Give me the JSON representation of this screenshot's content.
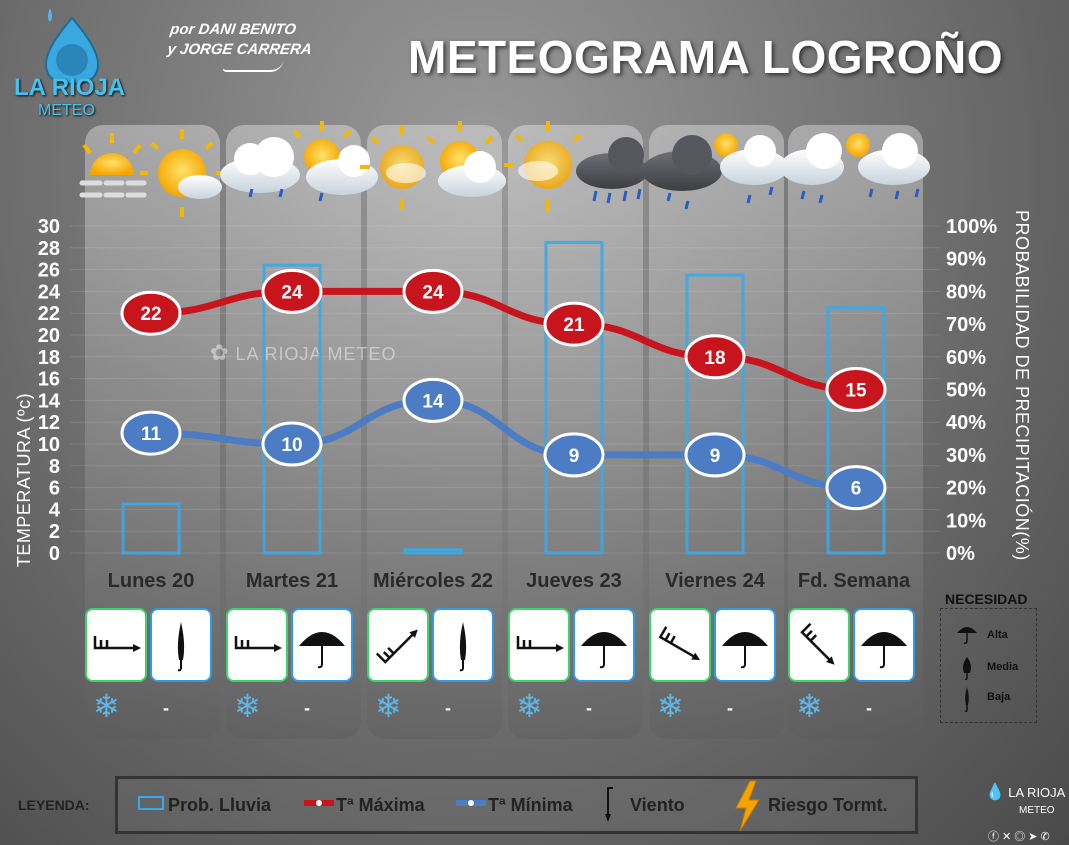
{
  "header": {
    "logo_line1": "LA RIOJA",
    "logo_line2": "METEO",
    "byline1": "por DANI BENITO",
    "byline2": "y JORGE CARRERA",
    "title": "METEOGRAMA LOGROÑO"
  },
  "watermark": "LA RIOJA METEO",
  "colors": {
    "max": "#c8141c",
    "min": "#4b7cc4",
    "rain": "#3aa8e8",
    "wind_border": "#3fd36b",
    "umbrella_border": "#2f9be8"
  },
  "chart_data": {
    "type": "line",
    "categories": [
      "Lunes 20",
      "Martes 21",
      "Miércoles 22",
      "Jueves 23",
      "Viernes 24",
      "Fd. Semana"
    ],
    "series": [
      {
        "name": "Tª Máxima",
        "values": [
          22,
          24,
          24,
          21,
          18,
          15
        ],
        "axis": "left"
      },
      {
        "name": "Tª Mínima",
        "values": [
          11,
          10,
          14,
          9,
          9,
          6
        ],
        "axis": "left"
      },
      {
        "name": "Prob. Lluvia",
        "values": [
          15,
          88,
          1,
          95,
          85,
          75
        ],
        "axis": "right",
        "render": "bar"
      }
    ],
    "ylabel": "TEMPERATURA (ºc)",
    "ylim": [
      0,
      30
    ],
    "yticks": [
      "0",
      "2",
      "4",
      "6",
      "8",
      "10",
      "12",
      "14",
      "16",
      "18",
      "20",
      "22",
      "24",
      "26",
      "28",
      "30"
    ],
    "y2label": "PROBABILIDAD DE PRECIPITACIÓN(%)",
    "y2lim": [
      0,
      100
    ],
    "y2ticks": [
      "0%",
      "10%",
      "20%",
      "30%",
      "40%",
      "50%",
      "60%",
      "70%",
      "80%",
      "90%",
      "100%"
    ]
  },
  "days": [
    {
      "name": "Lunes 20",
      "wind_dir": 90,
      "umbrella": "baja",
      "storm": "-"
    },
    {
      "name": "Martes 21",
      "wind_dir": 90,
      "umbrella": "alta",
      "storm": "-"
    },
    {
      "name": "Miércoles 22",
      "wind_dir": 45,
      "umbrella": "baja",
      "storm": "-"
    },
    {
      "name": "Jueves 23",
      "wind_dir": 90,
      "umbrella": "alta",
      "storm": "-"
    },
    {
      "name": "Viernes 24",
      "wind_dir": 120,
      "umbrella": "alta",
      "storm": "-"
    },
    {
      "name": "Fd. Semana",
      "wind_dir": 135,
      "umbrella": "alta",
      "storm": "-"
    }
  ],
  "necesidad": {
    "title": "NECESIDAD",
    "alta": "Alta",
    "media": "Media",
    "baja": "Baja"
  },
  "legend": {
    "label": "LEYENDA:",
    "rain": "Prob. Lluvia",
    "max": "Tª Máxima",
    "min": "Tª Mínima",
    "wind": "Viento",
    "storm": "Riesgo Tormt."
  },
  "footer": {
    "logo_line1": "LA RIOJA",
    "logo_line2": "METEO"
  }
}
